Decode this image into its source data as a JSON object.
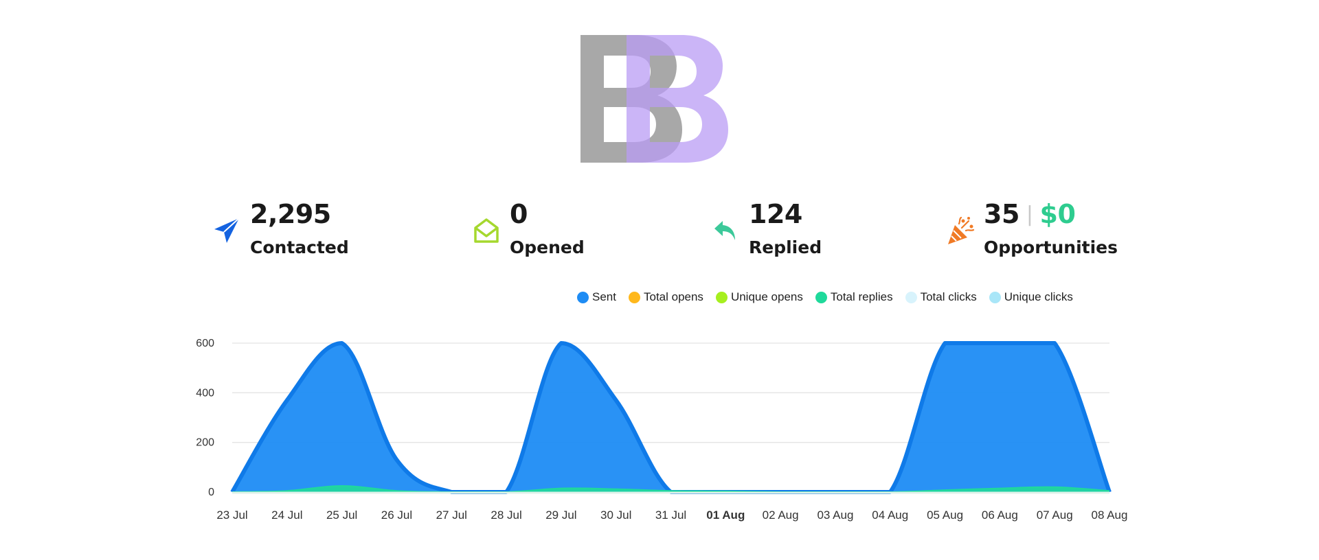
{
  "logo": {
    "letters": "BB",
    "colors": [
      "#a3a3a3",
      "#c9b3f6"
    ]
  },
  "stats": [
    {
      "icon": "paper-plane-icon",
      "value": "2,295",
      "label": "Contacted",
      "color": "#1463e0"
    },
    {
      "icon": "open-envelope-icon",
      "value": "0",
      "label": "Opened",
      "color": "#a5d82e"
    },
    {
      "icon": "reply-arrow-icon",
      "value": "124",
      "label": "Replied",
      "color": "#3cc99a"
    },
    {
      "icon": "party-popper-icon",
      "value": "35",
      "money": "$0",
      "label": "Opportunities",
      "color": "#f07a25"
    }
  ],
  "legend": [
    {
      "name": "Sent",
      "color": "#1e8cf4"
    },
    {
      "name": "Total opens",
      "color": "#ffb81c"
    },
    {
      "name": "Unique opens",
      "color": "#a6ef1f"
    },
    {
      "name": "Total replies",
      "color": "#1fd99b"
    },
    {
      "name": "Total clicks",
      "color": "#d8f3fc"
    },
    {
      "name": "Unique clicks",
      "color": "#a9e6f8"
    }
  ],
  "chart_data": {
    "type": "area",
    "categories": [
      "23 Jul",
      "24 Jul",
      "25 Jul",
      "26 Jul",
      "27 Jul",
      "28 Jul",
      "29 Jul",
      "30 Jul",
      "31 Jul",
      "01 Aug",
      "02 Aug",
      "03 Aug",
      "04 Aug",
      "05 Aug",
      "06 Aug",
      "07 Aug",
      "08 Aug"
    ],
    "highlight_category": "01 Aug",
    "yticks": [
      0,
      200,
      400,
      600
    ],
    "ylim": [
      0,
      600
    ],
    "grid": true,
    "legend_position": "top-right",
    "series": [
      {
        "name": "Sent",
        "color": "#1e8cf4",
        "stroke": "#0f7ae8",
        "values": [
          0,
          370,
          600,
          130,
          0,
          0,
          600,
          370,
          0,
          0,
          0,
          0,
          0,
          600,
          600,
          600,
          0
        ]
      },
      {
        "name": "Total replies",
        "color": "#1fd99b",
        "stroke": "#1fd99b",
        "values": [
          0,
          5,
          25,
          5,
          0,
          0,
          15,
          12,
          5,
          3,
          0,
          0,
          0,
          8,
          15,
          20,
          5
        ]
      }
    ]
  }
}
